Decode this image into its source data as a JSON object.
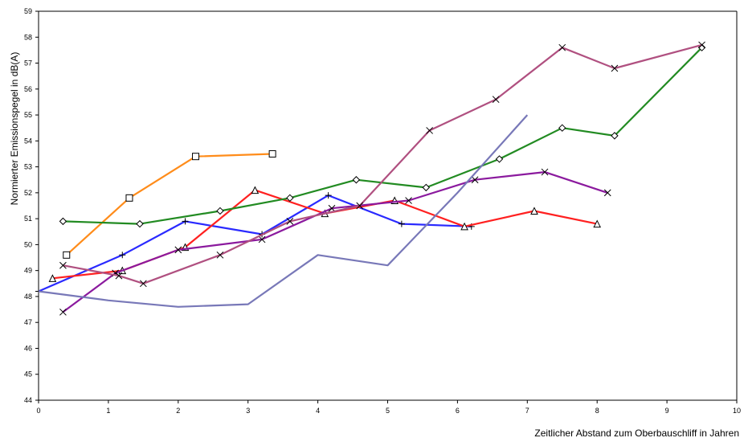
{
  "chart_data": {
    "type": "line",
    "title": "",
    "xlabel": "Zeitlicher Abstand zum Oberbauschliff in Jahren",
    "ylabel": "Normierter Emissionspegel in dB(A)",
    "xlim": [
      0,
      10
    ],
    "ylim": [
      44,
      59
    ],
    "xticks": [
      "0",
      "1",
      "2",
      "3",
      "4",
      "5",
      "6",
      "7",
      "8",
      "9",
      "10"
    ],
    "yticks": [
      "44",
      "45",
      "46",
      "47",
      "48",
      "49",
      "50",
      "51",
      "52",
      "53",
      "54",
      "55",
      "56",
      "57",
      "58",
      "59"
    ],
    "grid": false,
    "legend": "none",
    "series": [
      {
        "color": "#ff8c1a",
        "marker": "square",
        "x": [
          0.4,
          1.3,
          2.25,
          3.35
        ],
        "y": [
          49.6,
          51.8,
          53.4,
          53.5
        ]
      },
      {
        "color": "#2a2aff",
        "marker": "plus",
        "x": [
          0.0,
          1.2,
          2.1,
          3.2,
          4.15,
          5.2,
          6.2
        ],
        "y": [
          48.2,
          49.6,
          50.9,
          50.4,
          51.9,
          50.8,
          50.7
        ]
      },
      {
        "color": "#ff2020",
        "marker": "triangle",
        "x": [
          0.2,
          1.2,
          2.1,
          3.1,
          4.1,
          5.1,
          6.1,
          7.1,
          8.0
        ],
        "y": [
          48.7,
          49.0,
          49.9,
          52.1,
          51.2,
          51.7,
          50.7,
          51.3,
          50.8
        ]
      },
      {
        "color": "#228b22",
        "marker": "diamond",
        "x": [
          0.35,
          1.45,
          2.6,
          3.6,
          4.55,
          5.55,
          6.6,
          7.5,
          8.25,
          9.5
        ],
        "y": [
          50.9,
          50.8,
          51.3,
          51.8,
          52.5,
          52.2,
          53.3,
          54.5,
          54.2,
          57.6
        ]
      },
      {
        "color": "#8b1a9e",
        "marker": "cross",
        "x": [
          0.35,
          1.1,
          2.0,
          3.2,
          4.2,
          5.3,
          6.25,
          7.25,
          8.15
        ],
        "y": [
          47.4,
          48.9,
          49.8,
          50.2,
          51.4,
          51.7,
          52.5,
          52.8,
          52.0
        ]
      },
      {
        "color": "#b05080",
        "marker": "cross",
        "x": [
          0.35,
          1.15,
          1.5,
          2.6,
          3.6,
          4.6,
          5.6,
          6.55,
          7.5,
          8.25,
          9.5
        ],
        "y": [
          49.2,
          48.8,
          48.5,
          49.6,
          50.9,
          51.5,
          54.4,
          55.6,
          57.6,
          56.8,
          57.7
        ]
      },
      {
        "color": "#7878b8",
        "marker": "none",
        "x": [
          0.0,
          1.0,
          2.0,
          3.0,
          4.0,
          5.0,
          6.0,
          7.0
        ],
        "y": [
          48.2,
          47.85,
          47.6,
          47.7,
          49.6,
          49.2,
          52.0,
          55.0
        ]
      }
    ]
  }
}
